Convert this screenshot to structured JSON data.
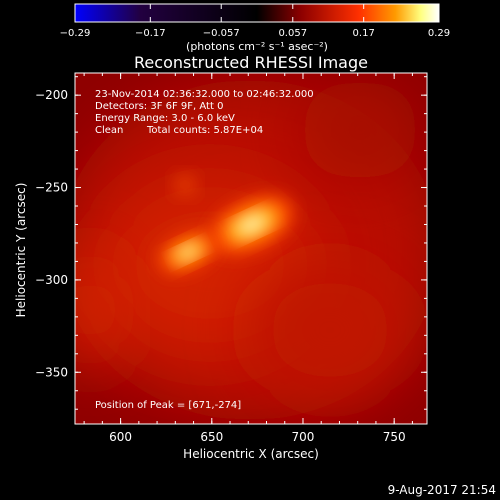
{
  "chart_data": {
    "type": "heatmap",
    "title": "Reconstructed RHESSI Image",
    "xlabel": "Heliocentric X (arcsec)",
    "ylabel": "Heliocentric Y (arcsec)",
    "xlim": [
      575,
      768
    ],
    "ylim": [
      -378,
      -188
    ],
    "x_ticks": [
      "600",
      "650",
      "700",
      "750"
    ],
    "x_tick_values": [
      600,
      650,
      700,
      750
    ],
    "y_ticks": [
      "−200",
      "−250",
      "−300",
      "−350"
    ],
    "y_tick_values": [
      -200,
      -250,
      -300,
      -350
    ],
    "colorbar": {
      "ticks": [
        "−0.29",
        "−0.17",
        "−0.057",
        "0.057",
        "0.17",
        "0.29"
      ],
      "tick_values": [
        -0.29,
        -0.17,
        -0.057,
        0.057,
        0.17,
        0.29
      ],
      "range": [
        -0.29,
        0.29
      ],
      "unit_label": "(photons cm⁻² s⁻¹ asec⁻²)",
      "colors": [
        "#0000ff",
        "#1a0030",
        "#000000",
        "#8c0000",
        "#ff3000",
        "#ff9a00",
        "#ffff80",
        "#ffffff"
      ]
    },
    "annotations": {
      "time_range": "23-Nov-2014 02:36:32.000 to 02:46:32.000",
      "detectors": "Detectors: 3F 6F 9F, Att 0",
      "energy_range": "Energy Range: 3.0 - 6.0 keV",
      "algorithm": "Clean",
      "total_counts": "Total counts: 5.87E+04",
      "peak_position": "Position of Peak = [671,-274]"
    },
    "sources": [
      {
        "x": 672,
        "y": -270,
        "intensity": 0.29
      },
      {
        "x": 637,
        "y": -285,
        "intensity": 0.2
      }
    ],
    "peak": {
      "x": 671,
      "y": -274
    }
  },
  "footer": {
    "date": "9-Aug-2017 21:54"
  }
}
